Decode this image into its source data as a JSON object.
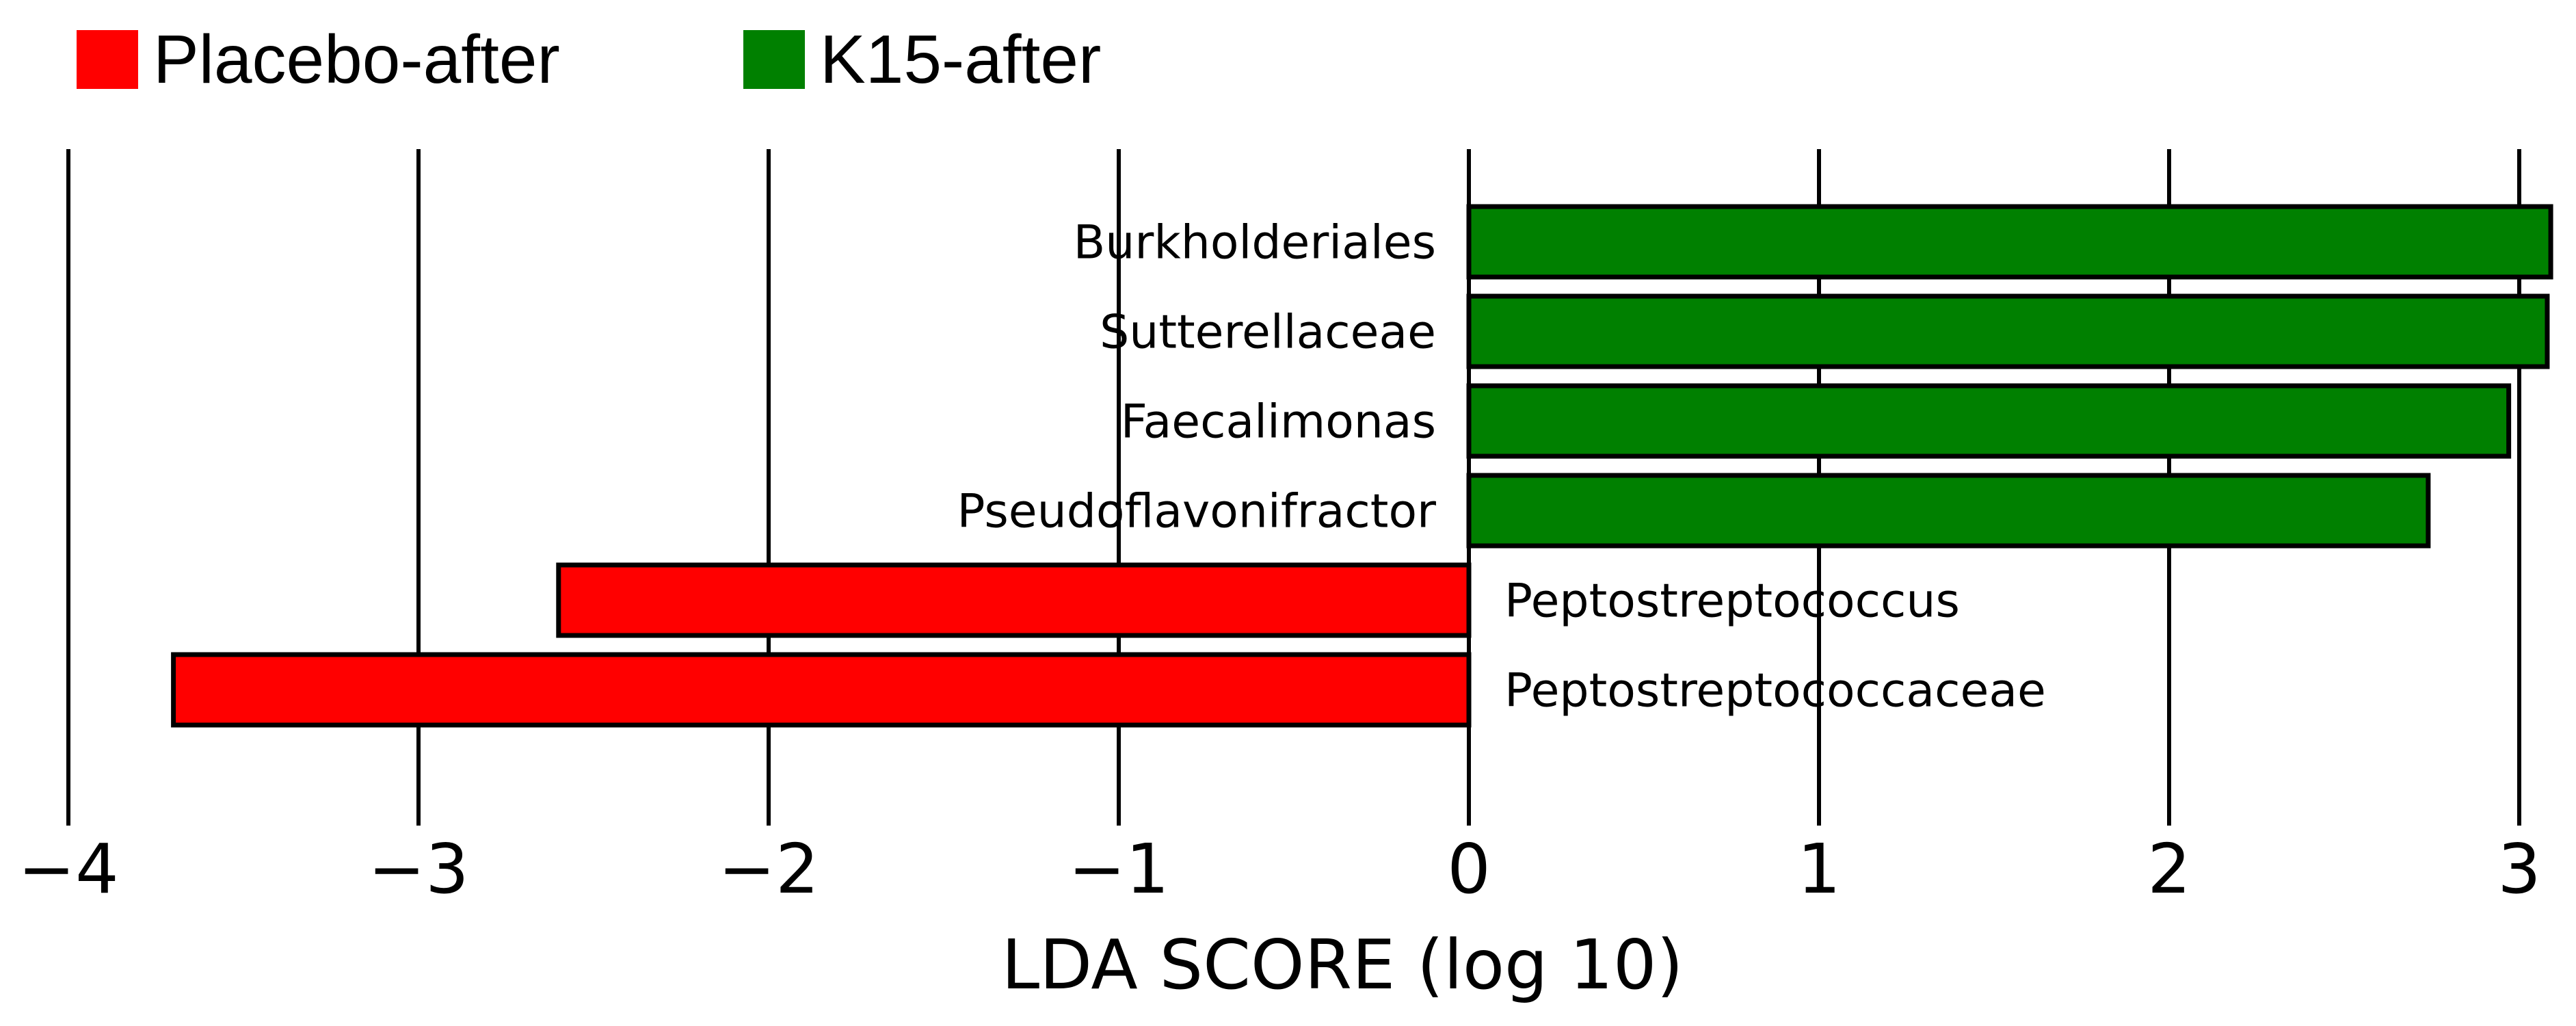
{
  "chart_data": {
    "type": "bar",
    "orientation": "horizontal",
    "xlabel": "LDA SCORE (log 10)",
    "xlim": [
      -4,
      3.1
    ],
    "x_ticks": [
      -4,
      -3,
      -2,
      -1,
      0,
      1,
      2,
      3
    ],
    "x_tick_labels": [
      "−4",
      "−3",
      "−2",
      "−1",
      "0",
      "1",
      "2",
      "3"
    ],
    "grid": "vertical lines at ticks",
    "legend": {
      "placement": "top-left",
      "entries": [
        {
          "label": "Placebo-after",
          "color": "#ff0000"
        },
        {
          "label": "K15-after",
          "color": "#008000"
        }
      ]
    },
    "categories": [
      "Burkholderiales",
      "Sutterellaceae",
      "Faecalimonas",
      "Pseudoflavonifractor",
      "Peptostreptococcus",
      "Peptostreptococcaceae"
    ],
    "values": [
      3.09,
      3.08,
      2.97,
      2.74,
      -2.6,
      -3.7
    ],
    "groups": [
      "K15-after",
      "K15-after",
      "K15-after",
      "K15-after",
      "Placebo-after",
      "Placebo-after"
    ]
  },
  "colors": {
    "K15-after": "#008000",
    "Placebo-after": "#ff0000"
  }
}
